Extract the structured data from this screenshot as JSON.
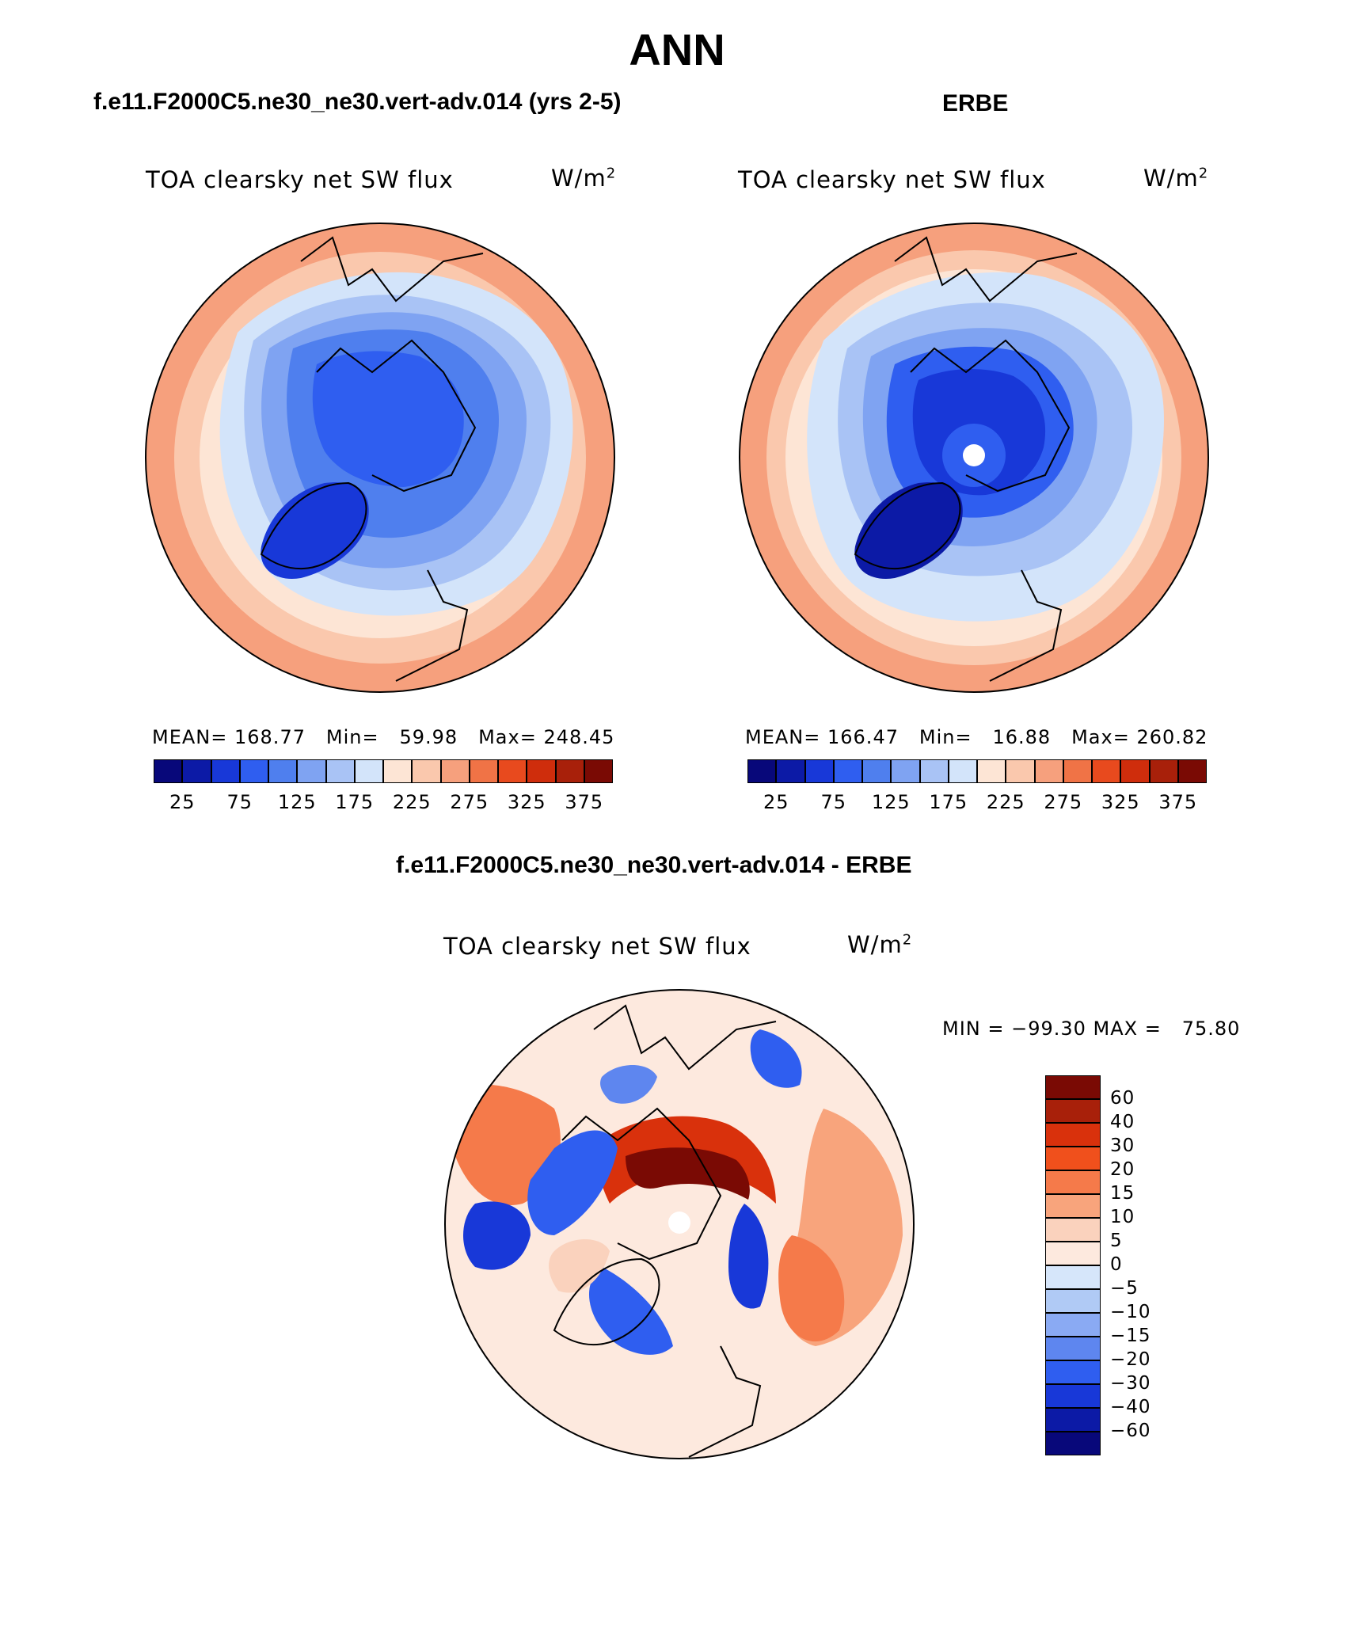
{
  "page": {
    "title": "ANN",
    "top_left_case": "f.e11.F2000C5.ne30_ne30.vert-adv.014 (yrs 2-5)",
    "top_right_case": "ERBE",
    "bottom_case": "f.e11.F2000C5.ne30_ne30.vert-adv.014 - ERBE"
  },
  "panels": {
    "left": {
      "variable": "TOA clearsky net SW flux",
      "units": "W/m",
      "units_sup": "2",
      "mean_label": "MEAN=",
      "mean": "168.77",
      "min_label": "Min=",
      "min": "59.98",
      "max_label": "Max=",
      "max": "248.45"
    },
    "right": {
      "variable": "TOA clearsky net SW flux",
      "units": "W/m",
      "units_sup": "2",
      "mean_label": "MEAN=",
      "mean": "166.47",
      "min_label": "Min=",
      "min": "16.88",
      "max_label": "Max=",
      "max": "260.82"
    },
    "diff": {
      "variable": "TOA clearsky net SW flux",
      "units": "W/m",
      "units_sup": "2",
      "minmax": "MIN = −99.30 MAX =   75.80"
    }
  },
  "colorbar_abs": {
    "colors": [
      "#08087a",
      "#0c1aa6",
      "#1838d8",
      "#2f5ef0",
      "#4f7fee",
      "#7fa3f2",
      "#a9c3f5",
      "#d3e4fa",
      "#fde5d5",
      "#fac8ad",
      "#f6a07d",
      "#f07346",
      "#e84a1e",
      "#cf2d0c",
      "#a8200a",
      "#7a0a04"
    ],
    "tick_labels": [
      "25",
      "75",
      "125",
      "175",
      "225",
      "275",
      "325",
      "375"
    ]
  },
  "colorbar_diff": {
    "colors": [
      "#7a0a04",
      "#a8200a",
      "#d9310c",
      "#f0501c",
      "#f57a4a",
      "#f8a47c",
      "#fad2bd",
      "#fde9de",
      "#d6e6fa",
      "#b0caf5",
      "#8aaaf3",
      "#5e86ef",
      "#2f5ef0",
      "#1838d8",
      "#0c1aa6",
      "#08087a"
    ],
    "tick_labels": [
      "60",
      "40",
      "30",
      "20",
      "15",
      "10",
      "5",
      "0",
      "−5",
      "−10",
      "−15",
      "−20",
      "−30",
      "−40",
      "−60"
    ]
  }
}
